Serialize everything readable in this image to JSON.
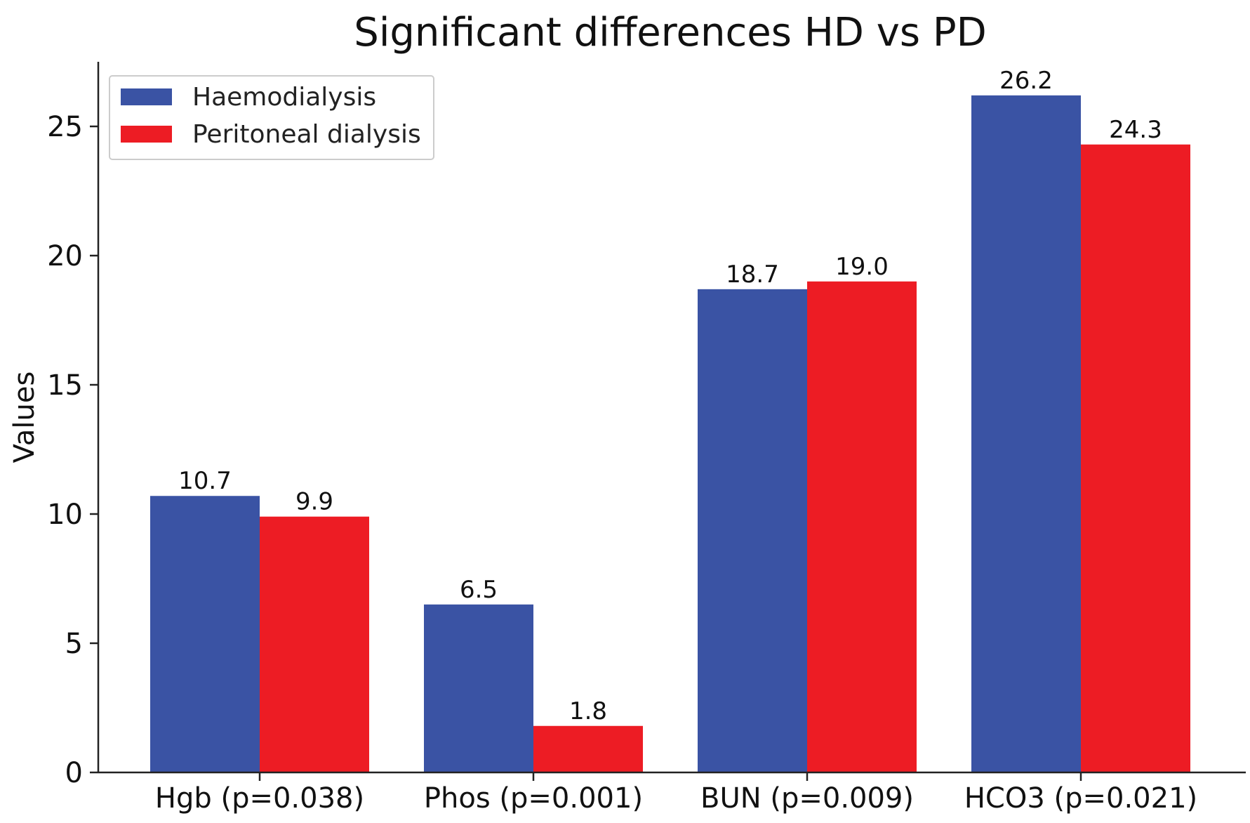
{
  "chart_data": {
    "type": "bar",
    "title": "Significant differences HD vs PD",
    "xlabel": "",
    "ylabel": "Values",
    "categories": [
      "Hgb (p=0.038)",
      "Phos (p=0.001)",
      "BUN (p=0.009)",
      "HCO3 (p=0.021)"
    ],
    "series": [
      {
        "name": "Haemodialysis",
        "color": "#3a53a4",
        "values": [
          10.7,
          6.5,
          18.7,
          26.2
        ],
        "labels": [
          "10.7",
          "6.5",
          "18.7",
          "26.2"
        ]
      },
      {
        "name": "Peritoneal dialysis",
        "color": "#ed1c24",
        "values": [
          9.9,
          1.8,
          19.0,
          24.3
        ],
        "labels": [
          "9.9",
          "1.8",
          "19.0",
          "24.3"
        ]
      }
    ],
    "ylim": [
      0,
      27.5
    ],
    "yticks": [
      0,
      5,
      10,
      15,
      20,
      25
    ],
    "ytick_labels": [
      "0",
      "5",
      "10",
      "15",
      "20",
      "25"
    ],
    "grid": false,
    "legend_position": "top-left"
  }
}
